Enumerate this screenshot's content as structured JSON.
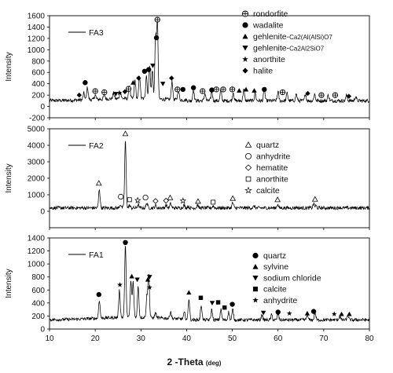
{
  "chart_data": [
    {
      "type": "line",
      "panel": "FA3",
      "series": [
        {
          "name": "FA3",
          "label_text": "FA3"
        }
      ],
      "ylabel": "Intensity",
      "ylim": [
        -200,
        1600
      ],
      "yticks": [
        -200,
        0,
        200,
        400,
        600,
        800,
        1000,
        1200,
        1400,
        1600
      ],
      "xlim": [
        10,
        80
      ],
      "baseline": 100,
      "peaks": [
        {
          "x": 17.5,
          "y": 220
        },
        {
          "x": 18.3,
          "y": 320
        },
        {
          "x": 20.0,
          "y": 180
        },
        {
          "x": 22.0,
          "y": 180
        },
        {
          "x": 24.0,
          "y": 200
        },
        {
          "x": 25.5,
          "y": 230
        },
        {
          "x": 27.5,
          "y": 330
        },
        {
          "x": 28.7,
          "y": 430
        },
        {
          "x": 29.7,
          "y": 520
        },
        {
          "x": 31.2,
          "y": 520
        },
        {
          "x": 31.9,
          "y": 700
        },
        {
          "x": 32.5,
          "y": 600
        },
        {
          "x": 33.2,
          "y": 1180
        },
        {
          "x": 33.6,
          "y": 1470
        },
        {
          "x": 36.8,
          "y": 430
        },
        {
          "x": 38.2,
          "y": 280
        },
        {
          "x": 41.5,
          "y": 300
        },
        {
          "x": 44.0,
          "y": 230
        },
        {
          "x": 45.5,
          "y": 260
        },
        {
          "x": 47.5,
          "y": 300
        },
        {
          "x": 50.2,
          "y": 250
        },
        {
          "x": 52.5,
          "y": 300
        },
        {
          "x": 55.0,
          "y": 240
        },
        {
          "x": 57.0,
          "y": 300
        },
        {
          "x": 60.0,
          "y": 260
        },
        {
          "x": 62.0,
          "y": 240
        },
        {
          "x": 64.0,
          "y": 220
        },
        {
          "x": 66.0,
          "y": 230
        },
        {
          "x": 68.0,
          "y": 220
        },
        {
          "x": 71.0,
          "y": 200
        },
        {
          "x": 75.0,
          "y": 200
        },
        {
          "x": 77.0,
          "y": 180
        }
      ],
      "markers": [
        {
          "x": 16.5,
          "y": 200,
          "m": "diamond"
        },
        {
          "x": 17.8,
          "y": 420,
          "m": "dot"
        },
        {
          "x": 20.0,
          "y": 270,
          "m": "ring"
        },
        {
          "x": 22.0,
          "y": 250,
          "m": "ring"
        },
        {
          "x": 24.5,
          "y": 220,
          "m": "tridown"
        },
        {
          "x": 25.3,
          "y": 240,
          "m": "star"
        },
        {
          "x": 26.5,
          "y": 260,
          "m": "diamond"
        },
        {
          "x": 27.3,
          "y": 310,
          "m": "ring"
        },
        {
          "x": 28.3,
          "y": 420,
          "m": "tri"
        },
        {
          "x": 29.5,
          "y": 500,
          "m": "diamond"
        },
        {
          "x": 30.8,
          "y": 620,
          "m": "dot"
        },
        {
          "x": 31.7,
          "y": 650,
          "m": "dot"
        },
        {
          "x": 32.6,
          "y": 720,
          "m": "tridown"
        },
        {
          "x": 33.4,
          "y": 1210,
          "m": "dot"
        },
        {
          "x": 33.6,
          "y": 1530,
          "m": "ring"
        },
        {
          "x": 34.8,
          "y": 400,
          "m": "tridown"
        },
        {
          "x": 36.7,
          "y": 500,
          "m": "diamond"
        },
        {
          "x": 38.0,
          "y": 300,
          "m": "ring"
        },
        {
          "x": 39.2,
          "y": 300,
          "m": "dot"
        },
        {
          "x": 41.5,
          "y": 330,
          "m": "dot"
        },
        {
          "x": 43.5,
          "y": 270,
          "m": "ring"
        },
        {
          "x": 45.5,
          "y": 290,
          "m": "dot"
        },
        {
          "x": 46.5,
          "y": 300,
          "m": "ring"
        },
        {
          "x": 48.0,
          "y": 300,
          "m": "ring"
        },
        {
          "x": 50.0,
          "y": 300,
          "m": "ring"
        },
        {
          "x": 51.5,
          "y": 280,
          "m": "tri"
        },
        {
          "x": 53.0,
          "y": 300,
          "m": "tri"
        },
        {
          "x": 54.8,
          "y": 280,
          "m": "tri"
        },
        {
          "x": 57.0,
          "y": 300,
          "m": "dot"
        },
        {
          "x": 61.0,
          "y": 250,
          "m": "ring"
        },
        {
          "x": 66.5,
          "y": 230,
          "m": "diamond"
        },
        {
          "x": 69.5,
          "y": 200,
          "m": "ring"
        },
        {
          "x": 72.5,
          "y": 200,
          "m": "ring"
        },
        {
          "x": 75.5,
          "y": 180,
          "m": "diamond"
        }
      ],
      "legend": [
        {
          "m": "ring",
          "label": "rondorfite"
        },
        {
          "m": "dot",
          "label": "wadalite"
        },
        {
          "m": "tri",
          "label": "gehlenite-",
          "sub": "Ca2(Al(AlSi)O7"
        },
        {
          "m": "tridown",
          "label": "gehlenite-",
          "sub": "Ca2Al2SiO7"
        },
        {
          "m": "star",
          "label": "anorthite"
        },
        {
          "m": "diamond",
          "label": "halite"
        }
      ]
    },
    {
      "type": "line",
      "panel": "FA2",
      "series": [
        {
          "name": "FA2",
          "label_text": "FA2"
        }
      ],
      "ylabel": "Intensity",
      "ylim": [
        -1000,
        5000
      ],
      "yticks": [
        0,
        1000,
        2000,
        3000,
        4000,
        5000
      ],
      "xlim": [
        10,
        80
      ],
      "baseline": 200,
      "peaks": [
        {
          "x": 20.9,
          "y": 1350
        },
        {
          "x": 25.5,
          "y": 420
        },
        {
          "x": 26.6,
          "y": 4300
        },
        {
          "x": 27.5,
          "y": 350
        },
        {
          "x": 29.4,
          "y": 400
        },
        {
          "x": 31.3,
          "y": 520
        },
        {
          "x": 33.2,
          "y": 350
        },
        {
          "x": 35.5,
          "y": 380
        },
        {
          "x": 36.5,
          "y": 460
        },
        {
          "x": 39.4,
          "y": 380
        },
        {
          "x": 40.3,
          "y": 300
        },
        {
          "x": 42.4,
          "y": 380
        },
        {
          "x": 45.8,
          "y": 330
        },
        {
          "x": 50.1,
          "y": 520
        },
        {
          "x": 54.8,
          "y": 300
        },
        {
          "x": 59.9,
          "y": 420
        },
        {
          "x": 64.0,
          "y": 250
        },
        {
          "x": 67.8,
          "y": 440
        },
        {
          "x": 68.3,
          "y": 330
        },
        {
          "x": 73.5,
          "y": 240
        }
      ],
      "markers": [
        {
          "x": 20.8,
          "y": 1700,
          "m": "tri_open"
        },
        {
          "x": 25.6,
          "y": 880,
          "m": "circle_open"
        },
        {
          "x": 26.6,
          "y": 4700,
          "m": "tri_open"
        },
        {
          "x": 27.5,
          "y": 700,
          "m": "square_open"
        },
        {
          "x": 29.3,
          "y": 660,
          "m": "star_open"
        },
        {
          "x": 31.0,
          "y": 830,
          "m": "circle_open"
        },
        {
          "x": 33.2,
          "y": 620,
          "m": "diamond_open"
        },
        {
          "x": 35.5,
          "y": 640,
          "m": "diamond_open"
        },
        {
          "x": 36.4,
          "y": 820,
          "m": "tri_open"
        },
        {
          "x": 39.2,
          "y": 630,
          "m": "star_open"
        },
        {
          "x": 42.5,
          "y": 600,
          "m": "tri_open"
        },
        {
          "x": 45.8,
          "y": 550,
          "m": "square_open"
        },
        {
          "x": 50.1,
          "y": 780,
          "m": "tri_open"
        },
        {
          "x": 59.9,
          "y": 700,
          "m": "tri_open"
        },
        {
          "x": 68.1,
          "y": 730,
          "m": "tri_open"
        }
      ],
      "legend": [
        {
          "m": "tri_open",
          "label": "quartz"
        },
        {
          "m": "circle_open",
          "label": "anhydrite"
        },
        {
          "m": "diamond_open",
          "label": "hematite"
        },
        {
          "m": "square_open",
          "label": "anorthite"
        },
        {
          "m": "star_open",
          "label": "calcite"
        }
      ]
    },
    {
      "type": "line",
      "panel": "FA1",
      "series": [
        {
          "name": "FA1",
          "label_text": "FA1"
        }
      ],
      "ylabel": "Intensity",
      "ylim": [
        0,
        1400
      ],
      "yticks": [
        0,
        200,
        400,
        600,
        800,
        1000,
        1200,
        1400
      ],
      "xlim": [
        10,
        80
      ],
      "baseline": 140,
      "peaks": [
        {
          "x": 20.9,
          "y": 420
        },
        {
          "x": 25.3,
          "y": 560
        },
        {
          "x": 26.6,
          "y": 1250
        },
        {
          "x": 27.8,
          "y": 700
        },
        {
          "x": 28.3,
          "y": 680
        },
        {
          "x": 29.4,
          "y": 620
        },
        {
          "x": 31.3,
          "y": 460
        },
        {
          "x": 31.7,
          "y": 820
        },
        {
          "x": 33.2,
          "y": 220
        },
        {
          "x": 36.5,
          "y": 250
        },
        {
          "x": 39.5,
          "y": 240
        },
        {
          "x": 40.5,
          "y": 470
        },
        {
          "x": 43.2,
          "y": 370
        },
        {
          "x": 45.5,
          "y": 300
        },
        {
          "x": 47.5,
          "y": 300
        },
        {
          "x": 49.2,
          "y": 260
        },
        {
          "x": 50.1,
          "y": 300
        },
        {
          "x": 56.5,
          "y": 220
        },
        {
          "x": 58.6,
          "y": 220
        },
        {
          "x": 60.0,
          "y": 240
        },
        {
          "x": 66.4,
          "y": 220
        },
        {
          "x": 68.1,
          "y": 260
        },
        {
          "x": 73.5,
          "y": 200
        },
        {
          "x": 75.3,
          "y": 210
        }
      ],
      "markers": [
        {
          "x": 20.8,
          "y": 530,
          "m": "dot"
        },
        {
          "x": 25.4,
          "y": 680,
          "m": "star"
        },
        {
          "x": 26.6,
          "y": 1330,
          "m": "dot"
        },
        {
          "x": 28.0,
          "y": 810,
          "m": "tri"
        },
        {
          "x": 29.2,
          "y": 760,
          "m": "tridown"
        },
        {
          "x": 31.5,
          "y": 760,
          "m": "tri"
        },
        {
          "x": 31.9,
          "y": 640,
          "m": "star"
        },
        {
          "x": 31.9,
          "y": 800,
          "m": "tridown"
        },
        {
          "x": 40.5,
          "y": 560,
          "m": "tri"
        },
        {
          "x": 43.1,
          "y": 480,
          "m": "square"
        },
        {
          "x": 45.6,
          "y": 400,
          "m": "tridown"
        },
        {
          "x": 46.9,
          "y": 410,
          "m": "square"
        },
        {
          "x": 48.3,
          "y": 330,
          "m": "square"
        },
        {
          "x": 50.0,
          "y": 380,
          "m": "dot"
        },
        {
          "x": 56.8,
          "y": 250,
          "m": "tridown"
        },
        {
          "x": 60.0,
          "y": 260,
          "m": "dot"
        },
        {
          "x": 62.5,
          "y": 240,
          "m": "star"
        },
        {
          "x": 66.4,
          "y": 240,
          "m": "tri"
        },
        {
          "x": 67.8,
          "y": 270,
          "m": "dot"
        },
        {
          "x": 72.3,
          "y": 230,
          "m": "star"
        },
        {
          "x": 73.9,
          "y": 230,
          "m": "tri"
        },
        {
          "x": 75.6,
          "y": 230,
          "m": "tri"
        }
      ],
      "legend": [
        {
          "m": "dot",
          "label": "quartz"
        },
        {
          "m": "tri",
          "label": "sylvine"
        },
        {
          "m": "tridown",
          "label": "sodium chloride"
        },
        {
          "m": "square",
          "label": "calcite"
        },
        {
          "m": "star",
          "label": "anhydrite"
        }
      ]
    }
  ],
  "x_axis": {
    "ticks": [
      10,
      20,
      30,
      40,
      50,
      60,
      70,
      80
    ],
    "title_main": "2 -Theta",
    "title_unit": "(deg)"
  }
}
